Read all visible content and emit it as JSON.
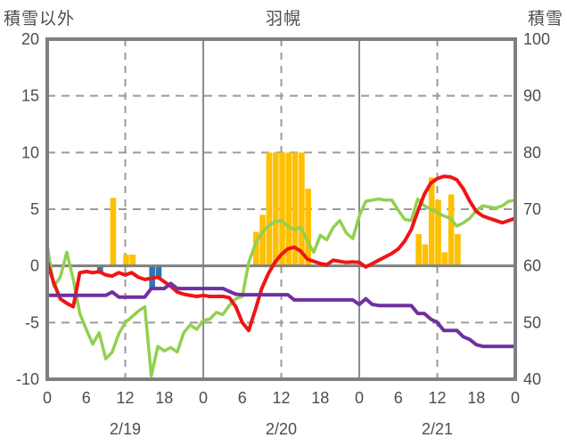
{
  "header": {
    "left_axis_title": "積雪以外",
    "center_title": "羽幌",
    "right_axis_title": "積雪"
  },
  "colors": {
    "temperature_red": "#f01414",
    "green_series": "#92d050",
    "snow_depth_purple": "#7030a0",
    "precip_orange": "#ffc000",
    "precip_blue": "#2e75b6",
    "frame_gray": "#7f7f7f",
    "grid_dashed_gray": "#9a9a9a",
    "grid_solid_gray": "#8c8c8c",
    "text_gray": "#4d4d4d"
  },
  "chart_data": {
    "type": "line+bar combo, dual y-axis",
    "title": "羽幌",
    "x_axis": {
      "unit": "hour",
      "range_hours": [
        0,
        72
      ],
      "tick_step_hours": 6,
      "hour_tick_labels": [
        "0",
        "6",
        "12",
        "18",
        "0",
        "6",
        "12",
        "18",
        "0",
        "6",
        "12",
        "18",
        "0"
      ],
      "day_labels": [
        {
          "label": "2/19",
          "center_hour": 12
        },
        {
          "label": "2/20",
          "center_hour": 36
        },
        {
          "label": "2/21",
          "center_hour": 60
        }
      ],
      "solid_gridline_hours": [
        24,
        48
      ],
      "dashed_gridline_hours": [
        12,
        36,
        60
      ]
    },
    "left_axis": {
      "title": "積雪以外",
      "min": -10,
      "max": 20,
      "tick_labels": [
        "20",
        "15",
        "10",
        "5",
        "0",
        "-5",
        "-10"
      ],
      "tick_values": [
        20,
        15,
        10,
        5,
        0,
        -5,
        -10
      ],
      "dashed_grid_values": [
        15,
        10,
        5,
        -5
      ],
      "zero_line_value": 0
    },
    "right_axis": {
      "title": "積雪",
      "min": 40,
      "max": 100,
      "tick_labels": [
        "100",
        "90",
        "80",
        "70",
        "60",
        "50",
        "40"
      ],
      "tick_values": [
        100,
        90,
        80,
        70,
        60,
        50,
        40
      ]
    },
    "series": [
      {
        "name": "green-line",
        "axis": "left",
        "color": "#92d050",
        "width": 3.5,
        "hours_step": 1,
        "values": [
          1.8,
          -1.8,
          -1.0,
          1.2,
          -1.2,
          -4.2,
          -5.6,
          -6.9,
          -5.9,
          -8.2,
          -7.6,
          -6.0,
          -5.0,
          -4.5,
          -4.0,
          -3.6,
          -9.7,
          -7.1,
          -7.5,
          -7.2,
          -7.6,
          -5.9,
          -5.2,
          -5.6,
          -4.8,
          -4.7,
          -4.1,
          -4.3,
          -3.5,
          -2.9,
          -2.7,
          0.3,
          1.9,
          2.9,
          3.5,
          3.9,
          4.0,
          3.5,
          3.2,
          3.4,
          2.2,
          1.2,
          2.7,
          2.3,
          3.4,
          4.0,
          2.9,
          2.4,
          4.4,
          5.7,
          5.8,
          5.9,
          5.8,
          5.8,
          4.9,
          4.1,
          4.0,
          5.9,
          5.3,
          5.0,
          4.7,
          4.4,
          4.2,
          3.5,
          3.8,
          4.2,
          4.9,
          5.3,
          5.2,
          5.1,
          5.3,
          5.7,
          5.8
        ]
      },
      {
        "name": "red-line",
        "axis": "left",
        "color": "#f01414",
        "width": 4,
        "hours_step": 1,
        "values": [
          0.4,
          -1.5,
          -2.9,
          -3.3,
          -3.6,
          -0.6,
          -0.5,
          -0.6,
          -0.5,
          -0.8,
          -0.9,
          -0.6,
          -0.8,
          -0.6,
          -1.0,
          -1.2,
          -1.1,
          -1.0,
          -1.4,
          -1.8,
          -2.3,
          -2.5,
          -2.6,
          -2.7,
          -2.6,
          -2.7,
          -2.7,
          -2.7,
          -2.8,
          -3.6,
          -5.0,
          -5.7,
          -3.9,
          -2.0,
          -0.7,
          0.3,
          1.0,
          1.5,
          1.65,
          1.3,
          0.6,
          0.4,
          0.2,
          0.1,
          0.5,
          0.4,
          0.3,
          0.35,
          0.3,
          -0.1,
          0.2,
          0.5,
          0.8,
          1.1,
          1.5,
          2.2,
          3.2,
          4.8,
          6.3,
          7.3,
          7.7,
          7.9,
          7.85,
          7.6,
          6.8,
          5.7,
          4.8,
          4.4,
          4.2,
          4.0,
          3.8,
          4.0,
          4.2
        ]
      },
      {
        "name": "purple-line",
        "axis": "right",
        "color": "#7030a0",
        "width": 4,
        "hours_step": 1,
        "values": [
          54.8,
          54.8,
          54.8,
          54.8,
          54.8,
          54.8,
          54.8,
          54.8,
          54.8,
          54.8,
          55.4,
          54.5,
          54.5,
          54.5,
          54.5,
          54.5,
          56.0,
          56.0,
          56.0,
          56.9,
          56.0,
          56.0,
          56.0,
          56.0,
          56.0,
          56.0,
          56.0,
          56.0,
          55.5,
          55.0,
          54.9,
          54.9,
          54.9,
          54.9,
          54.9,
          54.9,
          54.9,
          54.9,
          54.0,
          54.0,
          54.0,
          54.0,
          54.0,
          54.0,
          54.0,
          54.0,
          54.0,
          54.0,
          53.2,
          54.2,
          53.2,
          53.0,
          53.0,
          53.0,
          53.0,
          53.0,
          53.0,
          51.6,
          51.6,
          50.6,
          50.0,
          48.6,
          48.6,
          48.6,
          47.5,
          47.0,
          46.1,
          45.8,
          45.8,
          45.8,
          45.8,
          45.8,
          45.8
        ]
      }
    ],
    "bars": [
      {
        "name": "orange-bars",
        "axis": "left",
        "color": "#ffc000",
        "points": [
          {
            "hour": 10,
            "value": 6.0
          },
          {
            "hour": 12,
            "value": 1.0
          },
          {
            "hour": 13,
            "value": 1.0
          },
          {
            "hour": 32,
            "value": 3.0
          },
          {
            "hour": 33,
            "value": 4.5
          },
          {
            "hour": 34,
            "value": 10.0
          },
          {
            "hour": 35,
            "value": 10.0
          },
          {
            "hour": 36,
            "value": 10.0
          },
          {
            "hour": 37,
            "value": 10.0
          },
          {
            "hour": 38,
            "value": 10.0
          },
          {
            "hour": 39,
            "value": 10.0
          },
          {
            "hour": 40,
            "value": 6.8
          },
          {
            "hour": 57,
            "value": 2.8
          },
          {
            "hour": 58,
            "value": 1.9
          },
          {
            "hour": 59,
            "value": 7.8
          },
          {
            "hour": 60,
            "value": 5.8
          },
          {
            "hour": 61,
            "value": 1.2
          },
          {
            "hour": 62,
            "value": 6.3
          },
          {
            "hour": 63,
            "value": 2.8
          }
        ]
      },
      {
        "name": "blue-bars",
        "axis": "left",
        "color": "#2e75b6",
        "points": [
          {
            "hour": 8,
            "value": -0.7
          },
          {
            "hour": 16,
            "value": -2.1
          },
          {
            "hour": 17,
            "value": -1.0
          }
        ]
      }
    ]
  }
}
